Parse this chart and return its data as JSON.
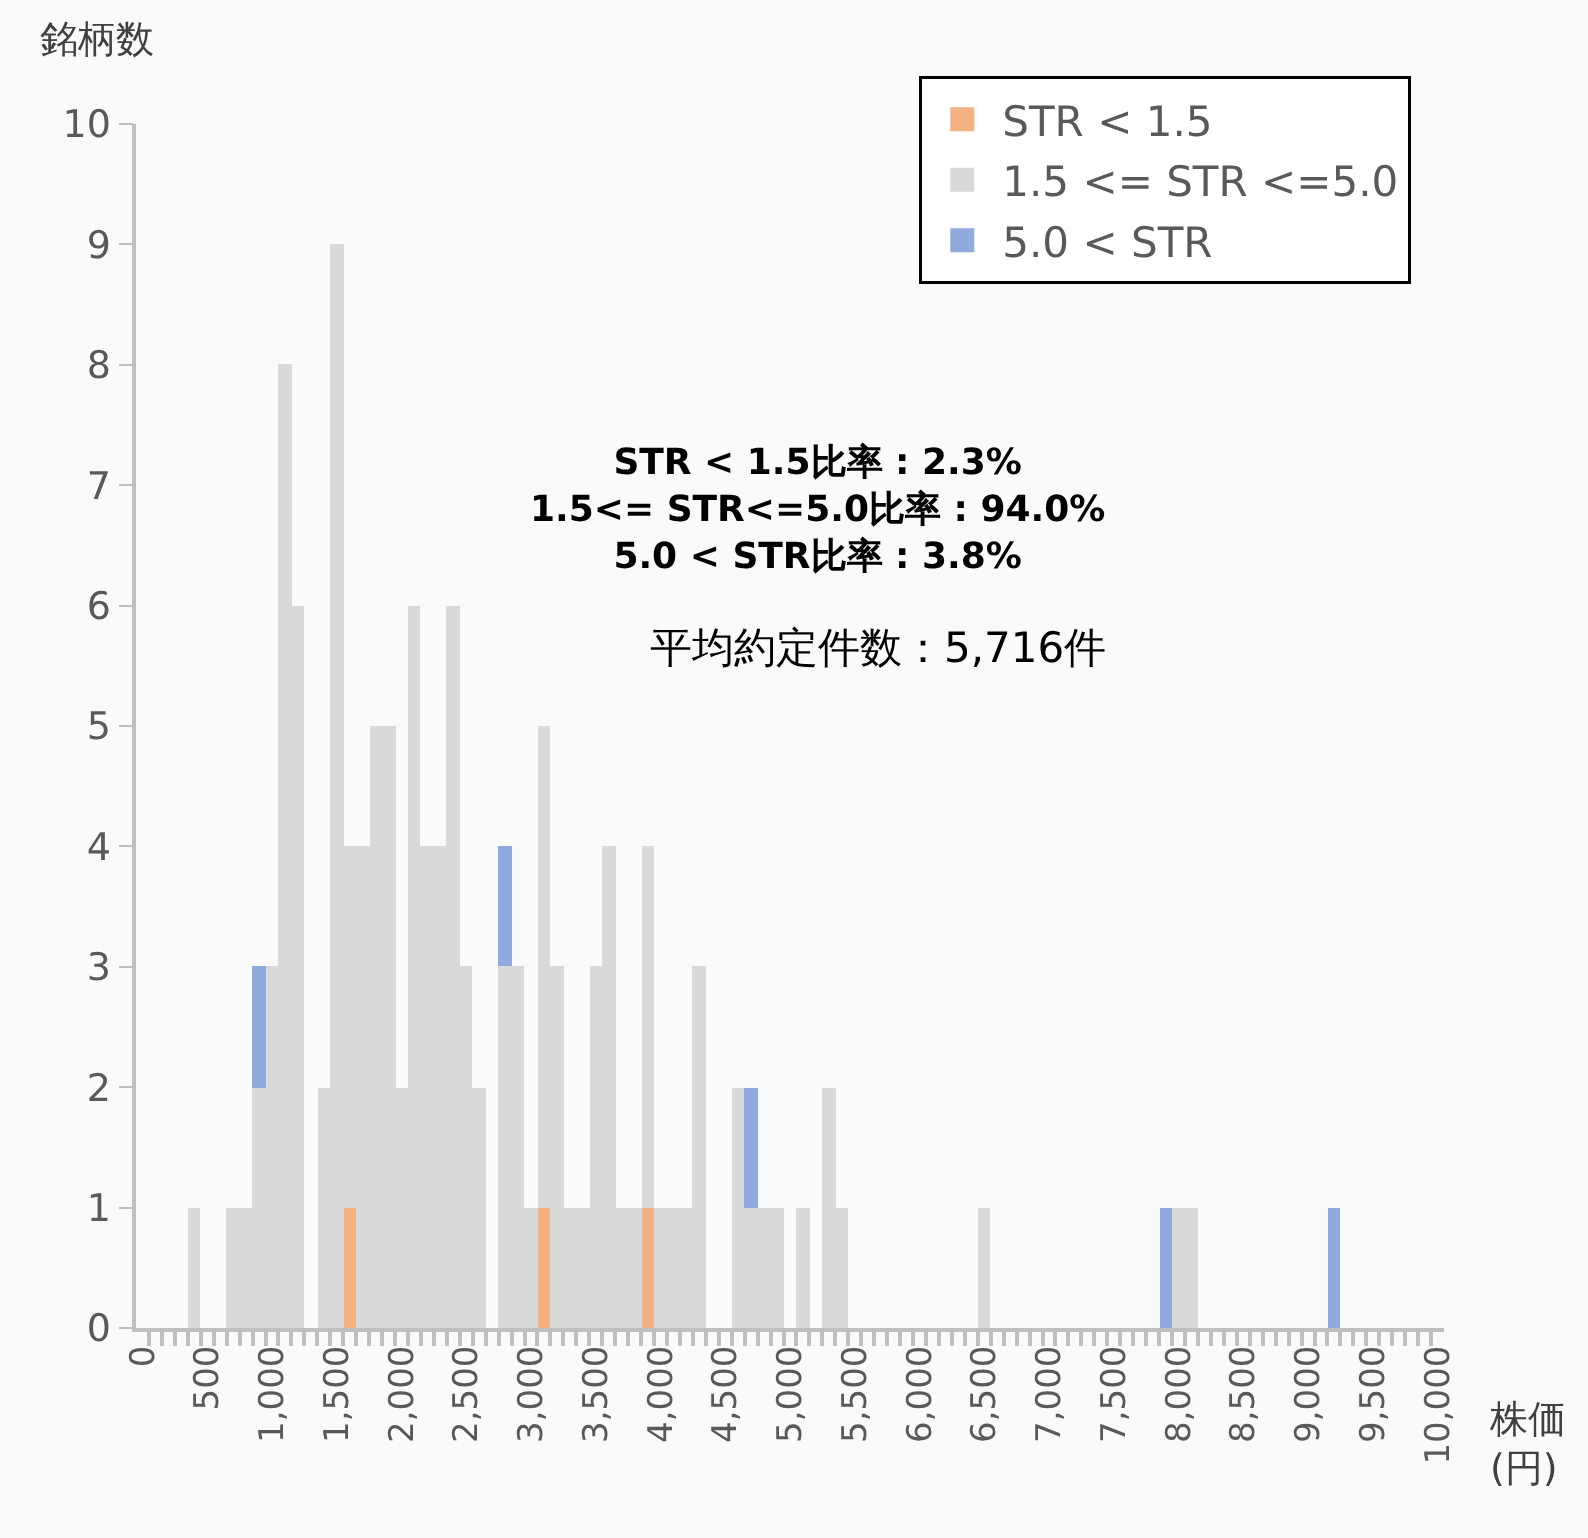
{
  "chart_data": {
    "type": "bar",
    "stacked": true,
    "ylabel": "銘柄数",
    "xlabel": "株価\n(円)",
    "categories": [
      "0",
      null,
      null,
      null,
      null,
      "500",
      null,
      null,
      null,
      null,
      "1,000",
      null,
      null,
      null,
      null,
      "1,500",
      null,
      null,
      null,
      null,
      "2,000",
      null,
      null,
      null,
      null,
      "2,500",
      null,
      null,
      null,
      null,
      "3,000",
      null,
      null,
      null,
      null,
      "3,500",
      null,
      null,
      null,
      null,
      "4,000",
      null,
      null,
      null,
      null,
      "4,500",
      null,
      null,
      null,
      null,
      "5,000",
      null,
      null,
      null,
      null,
      "5,500",
      null,
      null,
      null,
      null,
      "6,000",
      null,
      null,
      null,
      null,
      "6,500",
      null,
      null,
      null,
      null,
      "7,000",
      null,
      null,
      null,
      null,
      "7,500",
      null,
      null,
      null,
      null,
      "8,000",
      null,
      null,
      null,
      null,
      "8,500",
      null,
      null,
      null,
      null,
      "9,000",
      null,
      null,
      null,
      null,
      "9,500",
      null,
      null,
      null,
      null,
      "10,000"
    ],
    "series": [
      {
        "name": "STR < 1.5",
        "color": "#f4b183",
        "values": [
          0,
          0,
          0,
          0,
          0,
          0,
          0,
          0,
          0,
          0,
          0,
          0,
          0,
          0,
          0,
          0,
          1,
          0,
          0,
          0,
          0,
          0,
          0,
          0,
          0,
          0,
          0,
          0,
          0,
          0,
          0,
          1,
          0,
          0,
          0,
          0,
          0,
          0,
          0,
          1,
          0,
          0,
          0,
          0,
          0,
          0,
          0,
          0,
          0,
          0,
          0,
          0,
          0,
          0,
          0,
          0,
          0,
          0,
          0,
          0,
          0,
          0,
          0,
          0,
          0,
          0,
          0,
          0,
          0,
          0,
          0,
          0,
          0,
          0,
          0,
          0,
          0,
          0,
          0,
          0,
          0,
          0,
          0,
          0,
          0,
          0,
          0,
          0,
          0,
          0,
          0,
          0,
          0,
          0,
          0,
          0,
          0,
          0,
          0,
          0,
          0
        ]
      },
      {
        "name": "1.5 <= STR <=5.0",
        "color": "#d9d9d9",
        "values": [
          0,
          0,
          0,
          0,
          1,
          0,
          0,
          1,
          1,
          2,
          3,
          8,
          6,
          0,
          2,
          9,
          3,
          4,
          5,
          5,
          2,
          6,
          4,
          4,
          6,
          3,
          2,
          0,
          3,
          3,
          1,
          4,
          3,
          1,
          1,
          3,
          4,
          1,
          1,
          3,
          1,
          1,
          1,
          3,
          0,
          0,
          2,
          1,
          1,
          1,
          0,
          1,
          0,
          2,
          1,
          0,
          0,
          0,
          0,
          0,
          0,
          0,
          0,
          0,
          0,
          1,
          0,
          0,
          0,
          0,
          0,
          0,
          0,
          0,
          0,
          0,
          0,
          0,
          0,
          0,
          1,
          1,
          0,
          0,
          0,
          0,
          0,
          0,
          0,
          0,
          0,
          0,
          0,
          0,
          0,
          0,
          0,
          0,
          0,
          0,
          0
        ]
      },
      {
        "name": "5.0 < STR",
        "color": "#8faadc",
        "values": [
          0,
          0,
          0,
          0,
          0,
          0,
          0,
          0,
          0,
          1,
          0,
          0,
          0,
          0,
          0,
          0,
          0,
          0,
          0,
          0,
          0,
          0,
          0,
          0,
          0,
          0,
          0,
          0,
          1,
          0,
          0,
          0,
          0,
          0,
          0,
          0,
          0,
          0,
          0,
          0,
          0,
          0,
          0,
          0,
          0,
          0,
          0,
          1,
          0,
          0,
          0,
          0,
          0,
          0,
          0,
          0,
          0,
          0,
          0,
          0,
          0,
          0,
          0,
          0,
          0,
          0,
          0,
          0,
          0,
          0,
          0,
          0,
          0,
          0,
          0,
          0,
          0,
          0,
          0,
          1,
          0,
          0,
          0,
          0,
          0,
          0,
          0,
          0,
          0,
          0,
          0,
          0,
          1,
          0,
          0,
          0,
          0,
          0,
          0,
          0,
          0
        ]
      }
    ],
    "ylim": [
      0,
      10
    ],
    "yticks": [
      0,
      1,
      2,
      3,
      4,
      5,
      6,
      7,
      8,
      9,
      10
    ],
    "legend": "top right",
    "annotations": [
      "STR < 1.5比率 : 2.3%\n1.5<= STR<=5.0比率 : 94.0%\n5.0 < STR比率 : 3.8%",
      "平均約定件数：5,716件"
    ]
  }
}
